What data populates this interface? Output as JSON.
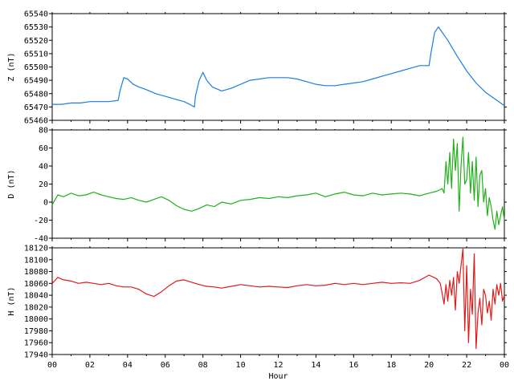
{
  "chart_data": [
    {
      "type": "line",
      "ylabel": "Z (nT)",
      "ylim": [
        65460,
        65540
      ],
      "yticks": [
        65460,
        65470,
        65480,
        65490,
        65500,
        65510,
        65520,
        65530,
        65540
      ],
      "xlim": [
        0,
        24
      ],
      "color": "#1a7fe0",
      "series": [
        {
          "x": [
            0,
            0.5,
            1,
            1.5,
            2,
            2.5,
            3,
            3.5,
            3.6,
            3.8,
            4,
            4.3,
            4.6,
            5,
            5.5,
            6,
            6.5,
            7,
            7.3,
            7.55,
            7.6,
            7.8,
            8,
            8.2,
            8.5,
            9,
            9.5,
            10,
            10.5,
            11,
            11.5,
            12,
            12.5,
            13,
            13.5,
            14,
            14.5,
            15,
            15.5,
            16,
            16.5,
            17,
            17.5,
            18,
            18.5,
            19,
            19.5,
            20,
            20.1,
            20.3,
            20.5,
            21,
            21.5,
            22,
            22.5,
            23,
            23.5,
            24
          ],
          "y": [
            65472,
            65472,
            65473,
            65473,
            65474,
            65474,
            65474,
            65475,
            65482,
            65492,
            65491,
            65487,
            65485,
            65483,
            65480,
            65478,
            65476,
            65474,
            65472,
            65470,
            65478,
            65490,
            65496,
            65490,
            65485,
            65482,
            65484,
            65487,
            65490,
            65491,
            65492,
            65492,
            65492,
            65491,
            65489,
            65487,
            65486,
            65486,
            65487,
            65488,
            65489,
            65491,
            65493,
            65495,
            65497,
            65499,
            65501,
            65501,
            65510,
            65526,
            65530,
            65520,
            65508,
            65497,
            65488,
            65481,
            65476,
            65471
          ]
        }
      ]
    },
    {
      "type": "line",
      "ylabel": "D (nT)",
      "ylim": [
        -40,
        80
      ],
      "yticks": [
        -40,
        -20,
        0,
        20,
        40,
        60,
        80
      ],
      "xlim": [
        0,
        24
      ],
      "color": "#22b01a",
      "series": [
        {
          "x": [
            0,
            0.3,
            0.6,
            1,
            1.4,
            1.8,
            2.2,
            2.6,
            3,
            3.4,
            3.8,
            4.2,
            4.6,
            5,
            5.4,
            5.8,
            6.2,
            6.6,
            7,
            7.4,
            7.8,
            8.2,
            8.6,
            9,
            9.5,
            10,
            10.5,
            11,
            11.5,
            12,
            12.5,
            13,
            13.5,
            14,
            14.5,
            15,
            15.5,
            16,
            16.5,
            17,
            17.5,
            18,
            18.5,
            19,
            19.5,
            20,
            20.4,
            20.7,
            20.8,
            20.9,
            21,
            21.1,
            21.2,
            21.3,
            21.4,
            21.5,
            21.6,
            21.7,
            21.8,
            21.9,
            22,
            22.1,
            22.2,
            22.3,
            22.4,
            22.5,
            22.6,
            22.7,
            22.8,
            22.9,
            23,
            23.1,
            23.2,
            23.3,
            23.4,
            23.5,
            23.6,
            23.7,
            23.8,
            23.9,
            24
          ],
          "y": [
            -3,
            8,
            6,
            10,
            7,
            8,
            11,
            8,
            6,
            4,
            3,
            5,
            2,
            0,
            3,
            6,
            2,
            -4,
            -8,
            -10,
            -7,
            -3,
            -5,
            0,
            -2,
            2,
            3,
            5,
            4,
            6,
            5,
            7,
            8,
            10,
            6,
            9,
            11,
            8,
            7,
            10,
            8,
            9,
            10,
            9,
            7,
            10,
            12,
            15,
            10,
            45,
            20,
            55,
            15,
            70,
            35,
            65,
            -10,
            40,
            72,
            20,
            25,
            55,
            10,
            45,
            2,
            50,
            -5,
            30,
            35,
            0,
            15,
            -15,
            5,
            -5,
            -20,
            -30,
            -10,
            -25,
            -15,
            -5,
            -20
          ]
        }
      ]
    },
    {
      "type": "line",
      "ylabel": "H (nT)",
      "ylim": [
        17940,
        18120
      ],
      "yticks": [
        17940,
        17960,
        17980,
        18000,
        18020,
        18040,
        18060,
        18080,
        18100,
        18120
      ],
      "xlim": [
        0,
        24
      ],
      "xticks": [
        "00",
        "02",
        "04",
        "06",
        "08",
        "10",
        "12",
        "14",
        "16",
        "18",
        "20",
        "22",
        "00"
      ],
      "xlabel": "Hour",
      "color": "#e01a1a",
      "series": [
        {
          "x": [
            0,
            0.3,
            0.6,
            1,
            1.4,
            1.8,
            2.2,
            2.6,
            3,
            3.4,
            3.8,
            4.2,
            4.6,
            5,
            5.4,
            5.8,
            6.2,
            6.6,
            7,
            7.4,
            7.8,
            8.2,
            8.6,
            9,
            9.5,
            10,
            10.5,
            11,
            11.5,
            12,
            12.5,
            13,
            13.5,
            14,
            14.5,
            15,
            15.5,
            16,
            16.5,
            17,
            17.5,
            18,
            18.5,
            19,
            19.5,
            20,
            20.4,
            20.6,
            20.8,
            20.9,
            21,
            21.1,
            21.2,
            21.3,
            21.4,
            21.5,
            21.6,
            21.7,
            21.8,
            21.9,
            22,
            22.1,
            22.2,
            22.3,
            22.4,
            22.5,
            22.6,
            22.7,
            22.8,
            22.9,
            23,
            23.1,
            23.2,
            23.3,
            23.4,
            23.5,
            23.6,
            23.7,
            23.8,
            23.9,
            24
          ],
          "y": [
            18060,
            18070,
            18066,
            18064,
            18060,
            18062,
            18060,
            18058,
            18060,
            18056,
            18054,
            18054,
            18050,
            18042,
            18038,
            18046,
            18056,
            18064,
            18066,
            18062,
            18058,
            18055,
            18054,
            18052,
            18055,
            18058,
            18056,
            18054,
            18055,
            18054,
            18053,
            18056,
            18058,
            18056,
            18057,
            18060,
            18058,
            18060,
            18058,
            18060,
            18062,
            18060,
            18061,
            18060,
            18065,
            18074,
            18068,
            18060,
            18025,
            18058,
            18030,
            18065,
            18040,
            18070,
            18015,
            18080,
            18060,
            18090,
            18118,
            17980,
            18090,
            17960,
            18050,
            18008,
            18110,
            17950,
            18010,
            18035,
            17990,
            18050,
            18040,
            18010,
            18030,
            17998,
            18050,
            18025,
            18058,
            18040,
            18060,
            18030,
            18040
          ]
        }
      ]
    }
  ]
}
